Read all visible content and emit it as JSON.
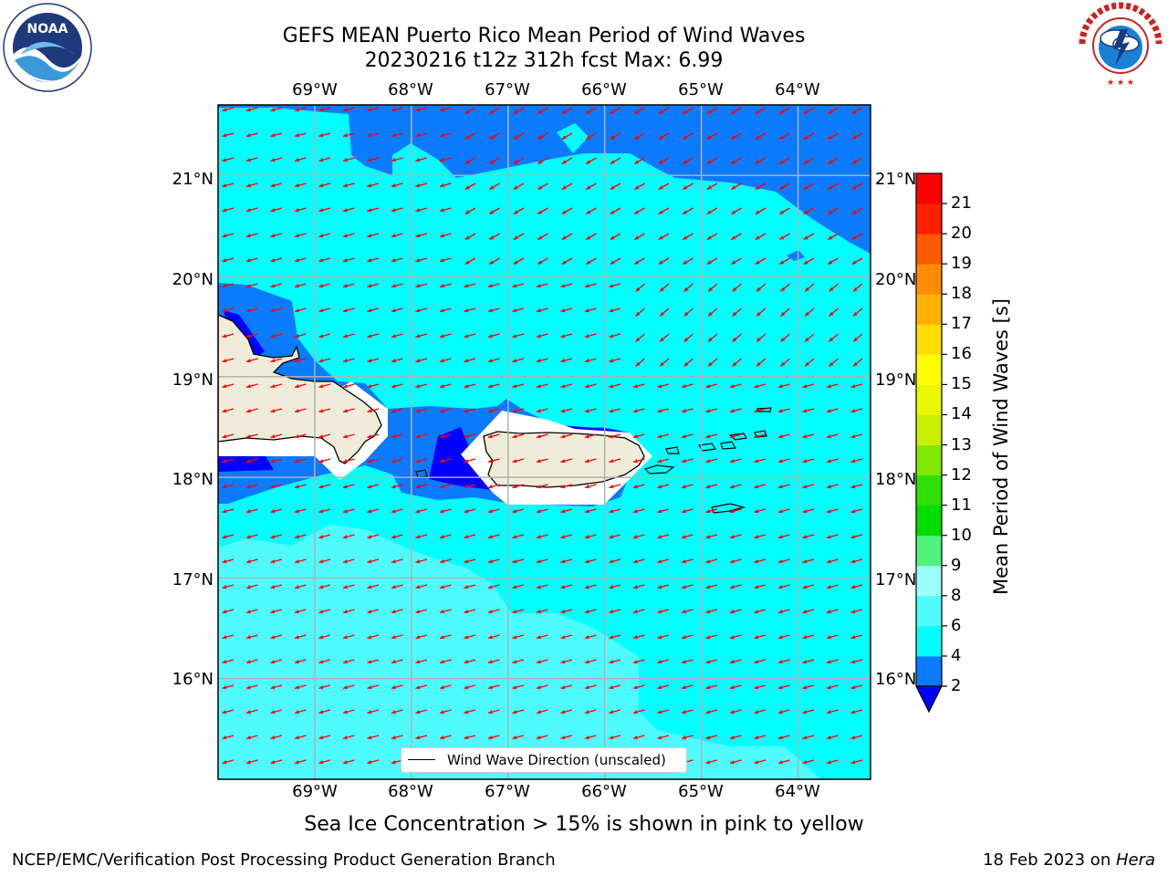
{
  "header": {
    "title_line1": "GEFS MEAN Puerto Rico Mean Period of Wind Waves",
    "title_line2": "20230216 t12z 312h fcst   Max: 6.99"
  },
  "logos": {
    "noaa_text": "NOAA",
    "noaa_ring": "NATIONAL OCEANIC AND ATMOSPHERIC ADMINISTRATION · U.S. DEPARTMENT OF COMMERCE",
    "nws_ring": "NATIONAL WEATHER SERVICE"
  },
  "map": {
    "lon_ticks": [
      "69°W",
      "68°W",
      "67°W",
      "66°W",
      "65°W",
      "64°W"
    ],
    "lat_ticks": [
      "21°N",
      "20°N",
      "19°N",
      "18°N",
      "17°N",
      "16°N"
    ],
    "extent": {
      "lon": [
        -70.0,
        -63.25
      ],
      "lat": [
        15.0,
        21.7
      ]
    },
    "arrow_color": "#ff0000",
    "land_color": "#efedd9",
    "grid": true
  },
  "legend": {
    "label": "Wind Wave Direction (unscaled)"
  },
  "colorbar": {
    "label": "Mean Period of Wind Waves [s]",
    "ticks": [
      "2",
      "4",
      "6",
      "8",
      "9",
      "10",
      "11",
      "12",
      "13",
      "14",
      "15",
      "16",
      "17",
      "18",
      "19",
      "20",
      "21"
    ],
    "under_color": "#0000ff",
    "colors": [
      "#0a7bff",
      "#00ffff",
      "#4efcff",
      "#9efcff",
      "#50f27e",
      "#00dd00",
      "#2fe000",
      "#7fe800",
      "#c8f000",
      "#eaf700",
      "#ffff00",
      "#ffdd00",
      "#ffb300",
      "#ff8c00",
      "#ff5a00",
      "#ff2000",
      "#ff0000"
    ]
  },
  "footnote": "Sea Ice Concentration > 15% is shown in pink to yellow",
  "footer": {
    "left": "NCEP/EMC/Verification Post Processing Product Generation Branch",
    "right_prefix": "18 Feb 2023 on ",
    "right_host": "Hera"
  }
}
